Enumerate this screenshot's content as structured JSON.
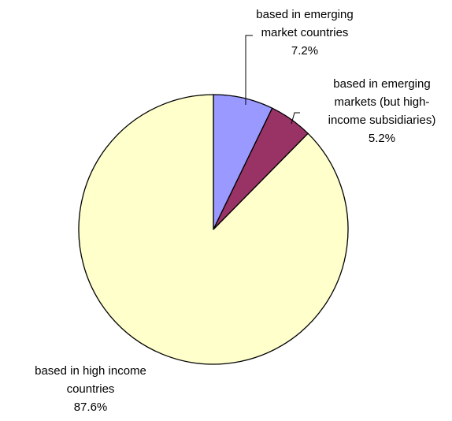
{
  "chart_data": {
    "type": "pie",
    "start_angle_deg": 0,
    "direction": "clockwise",
    "slices": [
      {
        "label_lines": [
          "based in emerging",
          "market countries",
          "7.2%"
        ],
        "value": 7.2,
        "color": "#9999ff"
      },
      {
        "label_lines": [
          "based in emerging",
          "markets (but high-",
          "income subsidiaries)",
          "5.2%"
        ],
        "value": 5.2,
        "color": "#993366"
      },
      {
        "label_lines": [
          "based in high income",
          "countries",
          "87.6%"
        ],
        "value": 87.6,
        "color": "#ffffcc"
      }
    ]
  }
}
